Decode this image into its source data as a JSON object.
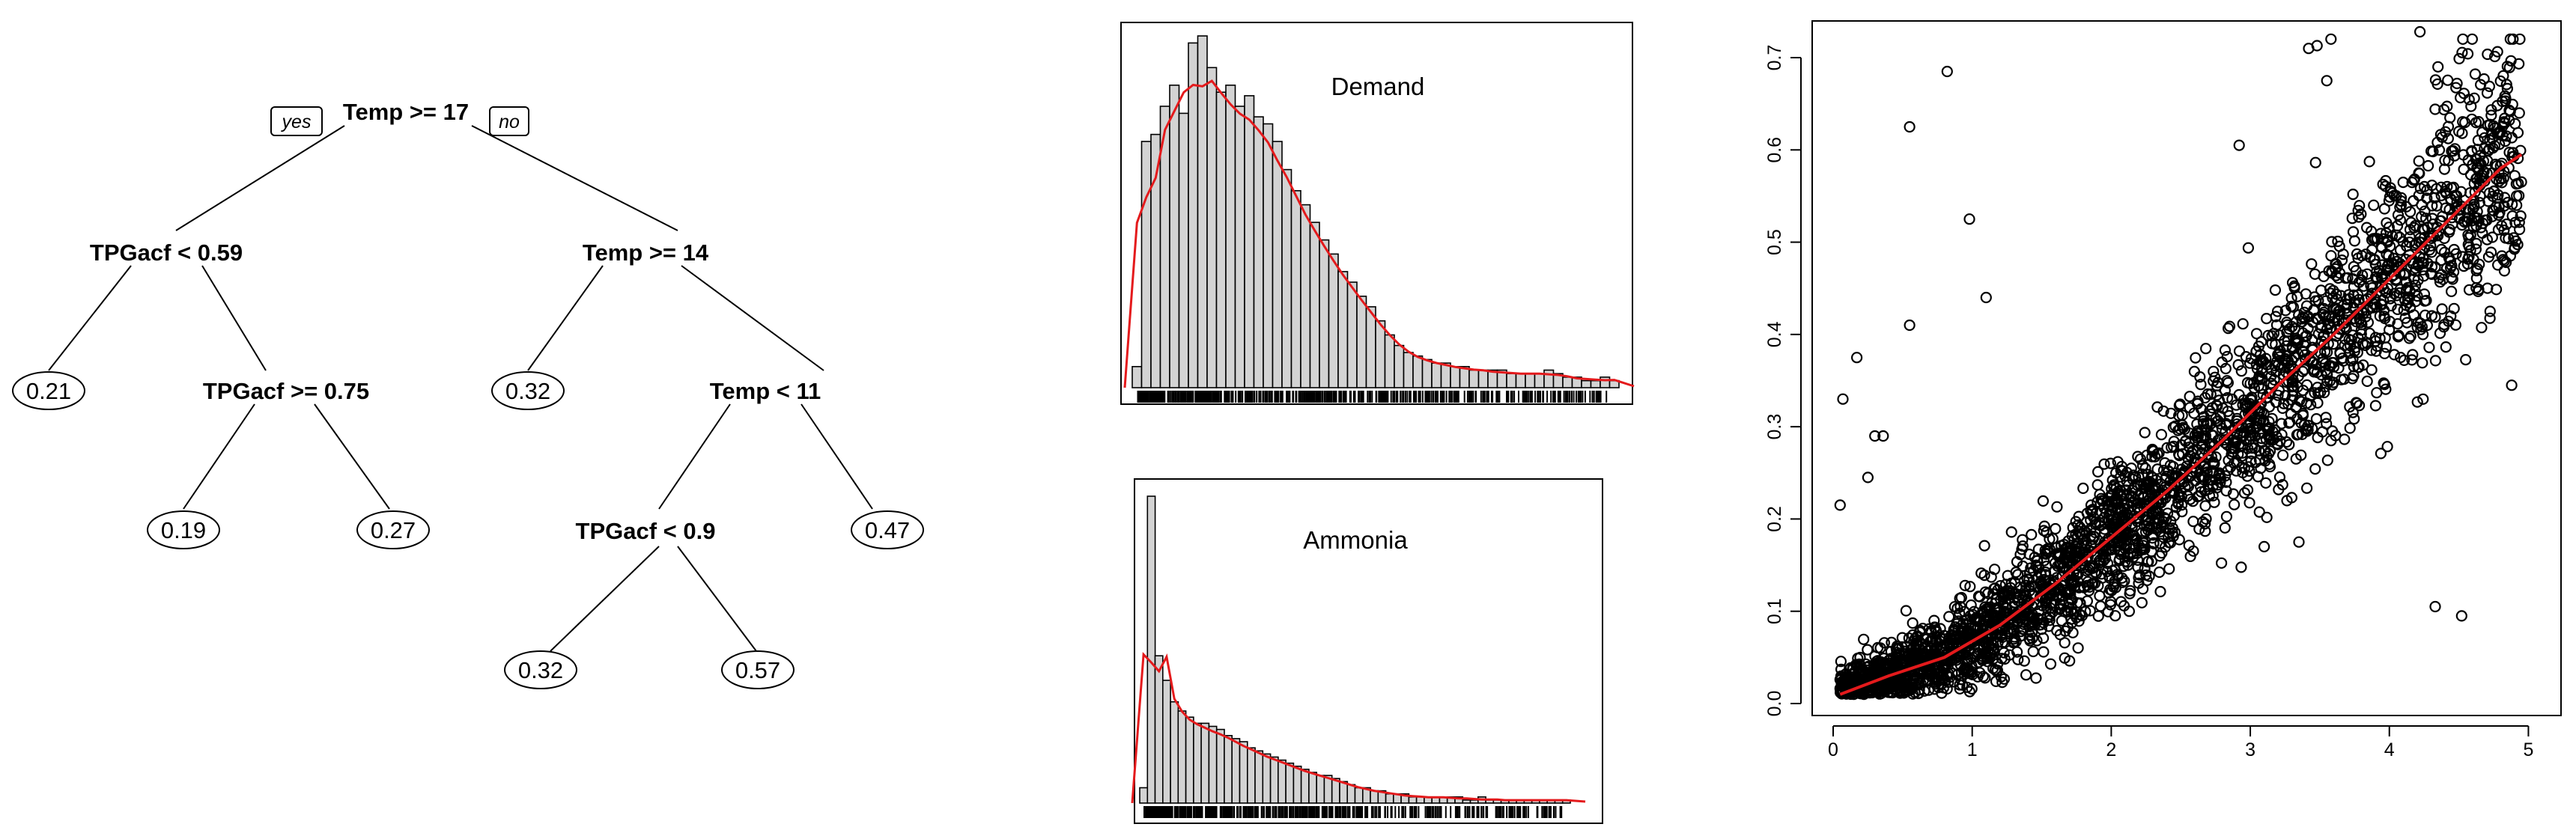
{
  "tree": {
    "yes_label": "yes",
    "no_label": "no",
    "nodes": [
      {
        "id": "root",
        "label": "Temp >= 17"
      },
      {
        "id": "n1",
        "label": "TPGacf < 0.59"
      },
      {
        "id": "n2",
        "label": "Temp >= 14"
      },
      {
        "id": "n3",
        "label": "TPGacf >= 0.75"
      },
      {
        "id": "n4",
        "label": "Temp < 11"
      },
      {
        "id": "n5",
        "label": "TPGacf < 0.9"
      }
    ],
    "leaves": [
      {
        "id": "l1",
        "label": "0.21"
      },
      {
        "id": "l2",
        "label": "0.19"
      },
      {
        "id": "l3",
        "label": "0.27"
      },
      {
        "id": "l4",
        "label": "0.32"
      },
      {
        "id": "l5",
        "label": "0.47"
      },
      {
        "id": "l6",
        "label": "0.32"
      },
      {
        "id": "l7",
        "label": "0.57"
      }
    ]
  },
  "chart_data": [
    {
      "type": "bar",
      "title": "Demand",
      "xlabel": "",
      "ylabel": "",
      "values": [
        0.06,
        0.7,
        0.72,
        0.8,
        0.86,
        0.78,
        0.98,
        1.0,
        0.91,
        0.84,
        0.86,
        0.8,
        0.83,
        0.77,
        0.75,
        0.7,
        0.62,
        0.56,
        0.52,
        0.47,
        0.42,
        0.38,
        0.33,
        0.3,
        0.26,
        0.23,
        0.19,
        0.15,
        0.12,
        0.1,
        0.09,
        0.08,
        0.07,
        0.07,
        0.06,
        0.06,
        0.05,
        0.05,
        0.05,
        0.05,
        0.04,
        0.04,
        0.04,
        0.04,
        0.05,
        0.04,
        0.03,
        0.03,
        0.02,
        0.02,
        0.03,
        0.02
      ],
      "density_curve": true,
      "rug": true,
      "axes": false,
      "curve_color": "#e41a1c",
      "bar_fill": "#d3d3d3"
    },
    {
      "type": "bar",
      "title": "Ammonia",
      "xlabel": "",
      "ylabel": "",
      "values": [
        0.05,
        1.0,
        0.48,
        0.4,
        0.33,
        0.3,
        0.28,
        0.26,
        0.26,
        0.25,
        0.24,
        0.22,
        0.21,
        0.2,
        0.18,
        0.17,
        0.16,
        0.15,
        0.14,
        0.13,
        0.12,
        0.11,
        0.1,
        0.09,
        0.09,
        0.08,
        0.07,
        0.06,
        0.05,
        0.05,
        0.04,
        0.04,
        0.03,
        0.03,
        0.03,
        0.02,
        0.02,
        0.02,
        0.02,
        0.02,
        0.02,
        0.02,
        0.01,
        0.01,
        0.02,
        0.01,
        0.01,
        0.01,
        0.01,
        0.01,
        0.01,
        0.01,
        0.01,
        0.01,
        0.01,
        0.01
      ],
      "density_curve": true,
      "rug": true,
      "axes": false,
      "curve_color": "#e41a1c",
      "bar_fill": "#d3d3d3"
    },
    {
      "type": "scatter",
      "title": "",
      "xlabel": "",
      "ylabel": "",
      "xlim": [
        0,
        5.1
      ],
      "ylim": [
        0,
        0.73
      ],
      "x_ticks": [
        "0",
        "1",
        "2",
        "3",
        "4",
        "5"
      ],
      "y_ticks": [
        "0.0",
        "0.1",
        "0.2",
        "0.3",
        "0.4",
        "0.5",
        "0.6",
        "0.7"
      ],
      "grid": false,
      "point_color": "#000000",
      "smooth_color": "#e41a1c",
      "smooth_line": {
        "x": [
          0.05,
          0.4,
          0.8,
          1.2,
          1.6,
          2.0,
          2.4,
          2.8,
          3.2,
          3.6,
          4.0,
          4.4,
          4.8,
          4.95
        ],
        "y": [
          0.01,
          0.03,
          0.05,
          0.085,
          0.13,
          0.18,
          0.23,
          0.285,
          0.345,
          0.4,
          0.46,
          0.52,
          0.58,
          0.595
        ]
      },
      "outliers": [
        {
          "x": 0.17,
          "y": 0.375
        },
        {
          "x": 0.07,
          "y": 0.33
        },
        {
          "x": 0.55,
          "y": 0.41
        },
        {
          "x": 0.82,
          "y": 0.685
        },
        {
          "x": 0.55,
          "y": 0.625
        },
        {
          "x": 0.98,
          "y": 0.525
        },
        {
          "x": 1.1,
          "y": 0.44
        },
        {
          "x": 2.92,
          "y": 0.605
        },
        {
          "x": 3.42,
          "y": 0.71
        },
        {
          "x": 3.48,
          "y": 0.713
        },
        {
          "x": 3.58,
          "y": 0.72
        },
        {
          "x": 3.55,
          "y": 0.675
        },
        {
          "x": 4.22,
          "y": 0.728
        },
        {
          "x": 4.35,
          "y": 0.69
        },
        {
          "x": 4.5,
          "y": 0.62
        },
        {
          "x": 4.33,
          "y": 0.105
        },
        {
          "x": 4.52,
          "y": 0.095
        },
        {
          "x": 4.88,
          "y": 0.345
        },
        {
          "x": 3.1,
          "y": 0.17
        },
        {
          "x": 3.35,
          "y": 0.175
        },
        {
          "x": 0.25,
          "y": 0.245
        },
        {
          "x": 0.3,
          "y": 0.29
        },
        {
          "x": 0.36,
          "y": 0.29
        },
        {
          "x": 0.05,
          "y": 0.215
        }
      ],
      "main_cloud": {
        "x_range": [
          0.05,
          4.95
        ],
        "trend": "y ≈ 0.012 + 0.118·x with spread increasing in x",
        "count_approx": 3000
      }
    }
  ]
}
